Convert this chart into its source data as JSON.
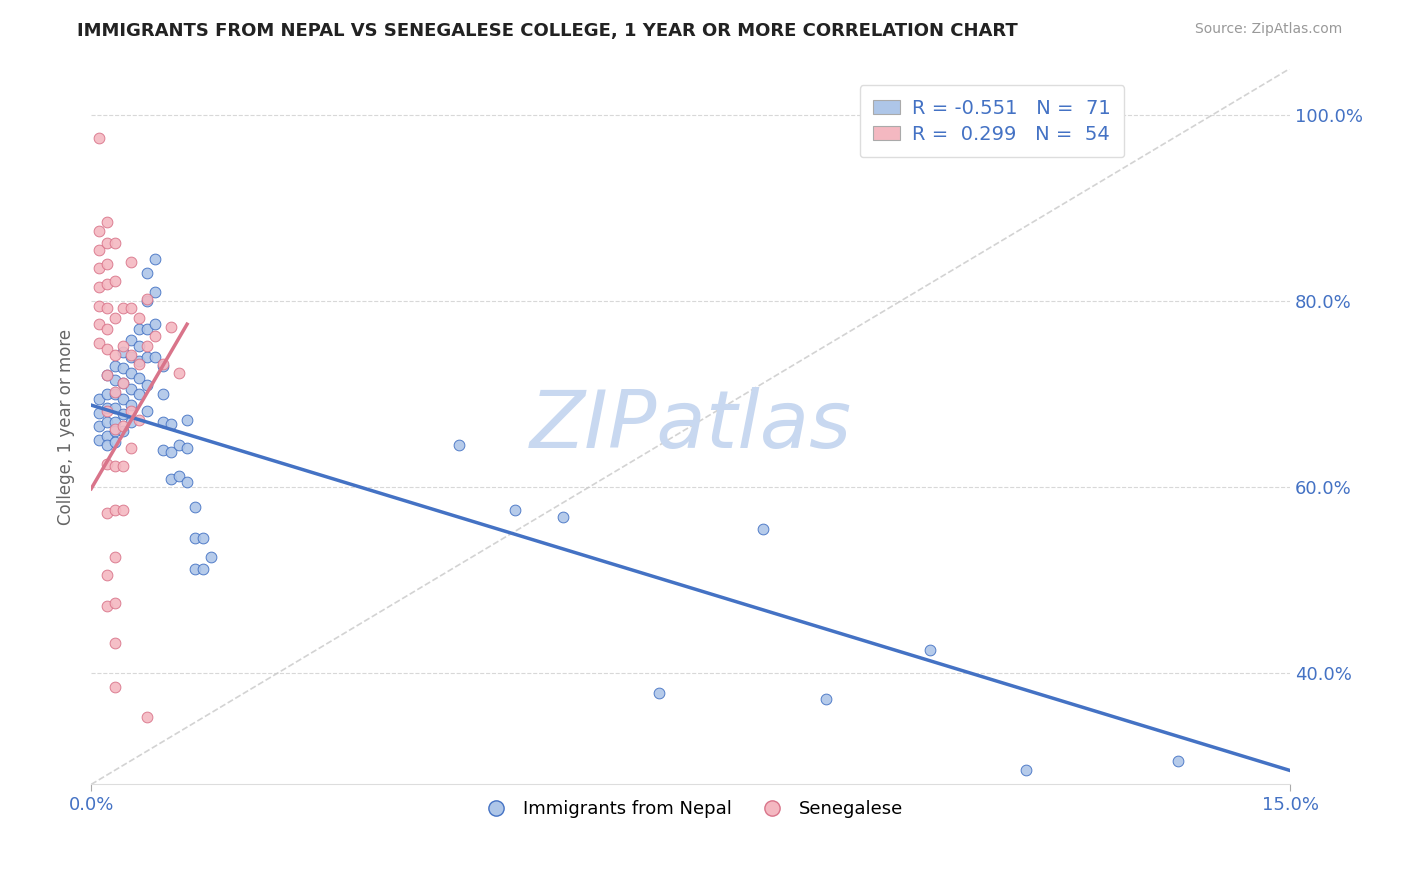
{
  "title": "IMMIGRANTS FROM NEPAL VS SENEGALESE COLLEGE, 1 YEAR OR MORE CORRELATION CHART",
  "source_text": "Source: ZipAtlas.com",
  "ylabel": "College, 1 year or more",
  "xlim": [
    0.0,
    0.15
  ],
  "ylim": [
    0.28,
    1.05
  ],
  "ytick_labels": [
    "40.0%",
    "60.0%",
    "80.0%",
    "100.0%"
  ],
  "ytick_values": [
    0.4,
    0.6,
    0.8,
    1.0
  ],
  "xtick_values": [
    0.0,
    0.15
  ],
  "xtick_labels": [
    "0.0%",
    "15.0%"
  ],
  "nepal_R": -0.551,
  "nepal_N": 71,
  "senegal_R": 0.299,
  "senegal_N": 54,
  "nepal_color": "#aec6e8",
  "senegal_color": "#f4b8c1",
  "nepal_line_color": "#4472c4",
  "senegal_line_color": "#d9748a",
  "grid_color": "#d8d8d8",
  "diag_color": "#c8c8c8",
  "watermark_color": "#c8d8f0",
  "legend_R_color": "#4472c4",
  "nepal_scatter": [
    [
      0.001,
      0.695
    ],
    [
      0.001,
      0.68
    ],
    [
      0.001,
      0.665
    ],
    [
      0.001,
      0.65
    ],
    [
      0.002,
      0.72
    ],
    [
      0.002,
      0.7
    ],
    [
      0.002,
      0.685
    ],
    [
      0.002,
      0.67
    ],
    [
      0.002,
      0.655
    ],
    [
      0.002,
      0.645
    ],
    [
      0.003,
      0.73
    ],
    [
      0.003,
      0.715
    ],
    [
      0.003,
      0.7
    ],
    [
      0.003,
      0.685
    ],
    [
      0.003,
      0.67
    ],
    [
      0.003,
      0.66
    ],
    [
      0.003,
      0.648
    ],
    [
      0.004,
      0.745
    ],
    [
      0.004,
      0.728
    ],
    [
      0.004,
      0.712
    ],
    [
      0.004,
      0.695
    ],
    [
      0.004,
      0.678
    ],
    [
      0.004,
      0.66
    ],
    [
      0.005,
      0.758
    ],
    [
      0.005,
      0.74
    ],
    [
      0.005,
      0.722
    ],
    [
      0.005,
      0.705
    ],
    [
      0.005,
      0.688
    ],
    [
      0.005,
      0.67
    ],
    [
      0.006,
      0.77
    ],
    [
      0.006,
      0.752
    ],
    [
      0.006,
      0.735
    ],
    [
      0.006,
      0.717
    ],
    [
      0.006,
      0.7
    ],
    [
      0.007,
      0.83
    ],
    [
      0.007,
      0.8
    ],
    [
      0.007,
      0.77
    ],
    [
      0.007,
      0.74
    ],
    [
      0.007,
      0.71
    ],
    [
      0.007,
      0.682
    ],
    [
      0.008,
      0.845
    ],
    [
      0.008,
      0.81
    ],
    [
      0.008,
      0.775
    ],
    [
      0.008,
      0.74
    ],
    [
      0.009,
      0.73
    ],
    [
      0.009,
      0.7
    ],
    [
      0.009,
      0.67
    ],
    [
      0.009,
      0.64
    ],
    [
      0.01,
      0.668
    ],
    [
      0.01,
      0.638
    ],
    [
      0.01,
      0.608
    ],
    [
      0.011,
      0.645
    ],
    [
      0.011,
      0.612
    ],
    [
      0.012,
      0.672
    ],
    [
      0.012,
      0.642
    ],
    [
      0.012,
      0.605
    ],
    [
      0.013,
      0.578
    ],
    [
      0.013,
      0.545
    ],
    [
      0.013,
      0.512
    ],
    [
      0.014,
      0.545
    ],
    [
      0.014,
      0.512
    ],
    [
      0.015,
      0.525
    ],
    [
      0.046,
      0.645
    ],
    [
      0.053,
      0.575
    ],
    [
      0.059,
      0.568
    ],
    [
      0.071,
      0.378
    ],
    [
      0.084,
      0.555
    ],
    [
      0.092,
      0.372
    ],
    [
      0.105,
      0.425
    ],
    [
      0.117,
      0.295
    ],
    [
      0.136,
      0.305
    ]
  ],
  "senegal_scatter": [
    [
      0.001,
      0.975
    ],
    [
      0.001,
      0.875
    ],
    [
      0.001,
      0.855
    ],
    [
      0.001,
      0.835
    ],
    [
      0.001,
      0.815
    ],
    [
      0.001,
      0.795
    ],
    [
      0.001,
      0.775
    ],
    [
      0.001,
      0.755
    ],
    [
      0.002,
      0.885
    ],
    [
      0.002,
      0.862
    ],
    [
      0.002,
      0.84
    ],
    [
      0.002,
      0.818
    ],
    [
      0.002,
      0.792
    ],
    [
      0.002,
      0.77
    ],
    [
      0.002,
      0.748
    ],
    [
      0.002,
      0.72
    ],
    [
      0.002,
      0.682
    ],
    [
      0.002,
      0.625
    ],
    [
      0.002,
      0.572
    ],
    [
      0.002,
      0.505
    ],
    [
      0.002,
      0.472
    ],
    [
      0.003,
      0.862
    ],
    [
      0.003,
      0.822
    ],
    [
      0.003,
      0.782
    ],
    [
      0.003,
      0.742
    ],
    [
      0.003,
      0.702
    ],
    [
      0.003,
      0.662
    ],
    [
      0.003,
      0.622
    ],
    [
      0.003,
      0.575
    ],
    [
      0.003,
      0.525
    ],
    [
      0.003,
      0.475
    ],
    [
      0.003,
      0.432
    ],
    [
      0.003,
      0.385
    ],
    [
      0.004,
      0.792
    ],
    [
      0.004,
      0.752
    ],
    [
      0.004,
      0.712
    ],
    [
      0.004,
      0.665
    ],
    [
      0.004,
      0.622
    ],
    [
      0.004,
      0.575
    ],
    [
      0.005,
      0.842
    ],
    [
      0.005,
      0.792
    ],
    [
      0.005,
      0.742
    ],
    [
      0.005,
      0.682
    ],
    [
      0.005,
      0.642
    ],
    [
      0.006,
      0.782
    ],
    [
      0.006,
      0.732
    ],
    [
      0.006,
      0.672
    ],
    [
      0.007,
      0.802
    ],
    [
      0.007,
      0.752
    ],
    [
      0.007,
      0.352
    ],
    [
      0.008,
      0.762
    ],
    [
      0.009,
      0.732
    ],
    [
      0.01,
      0.772
    ],
    [
      0.011,
      0.722
    ]
  ],
  "nepal_trend_x": [
    0.0,
    0.15
  ],
  "nepal_trend_y": [
    0.688,
    0.295
  ],
  "senegal_trend_x": [
    0.0,
    0.012
  ],
  "senegal_trend_y": [
    0.598,
    0.775
  ]
}
